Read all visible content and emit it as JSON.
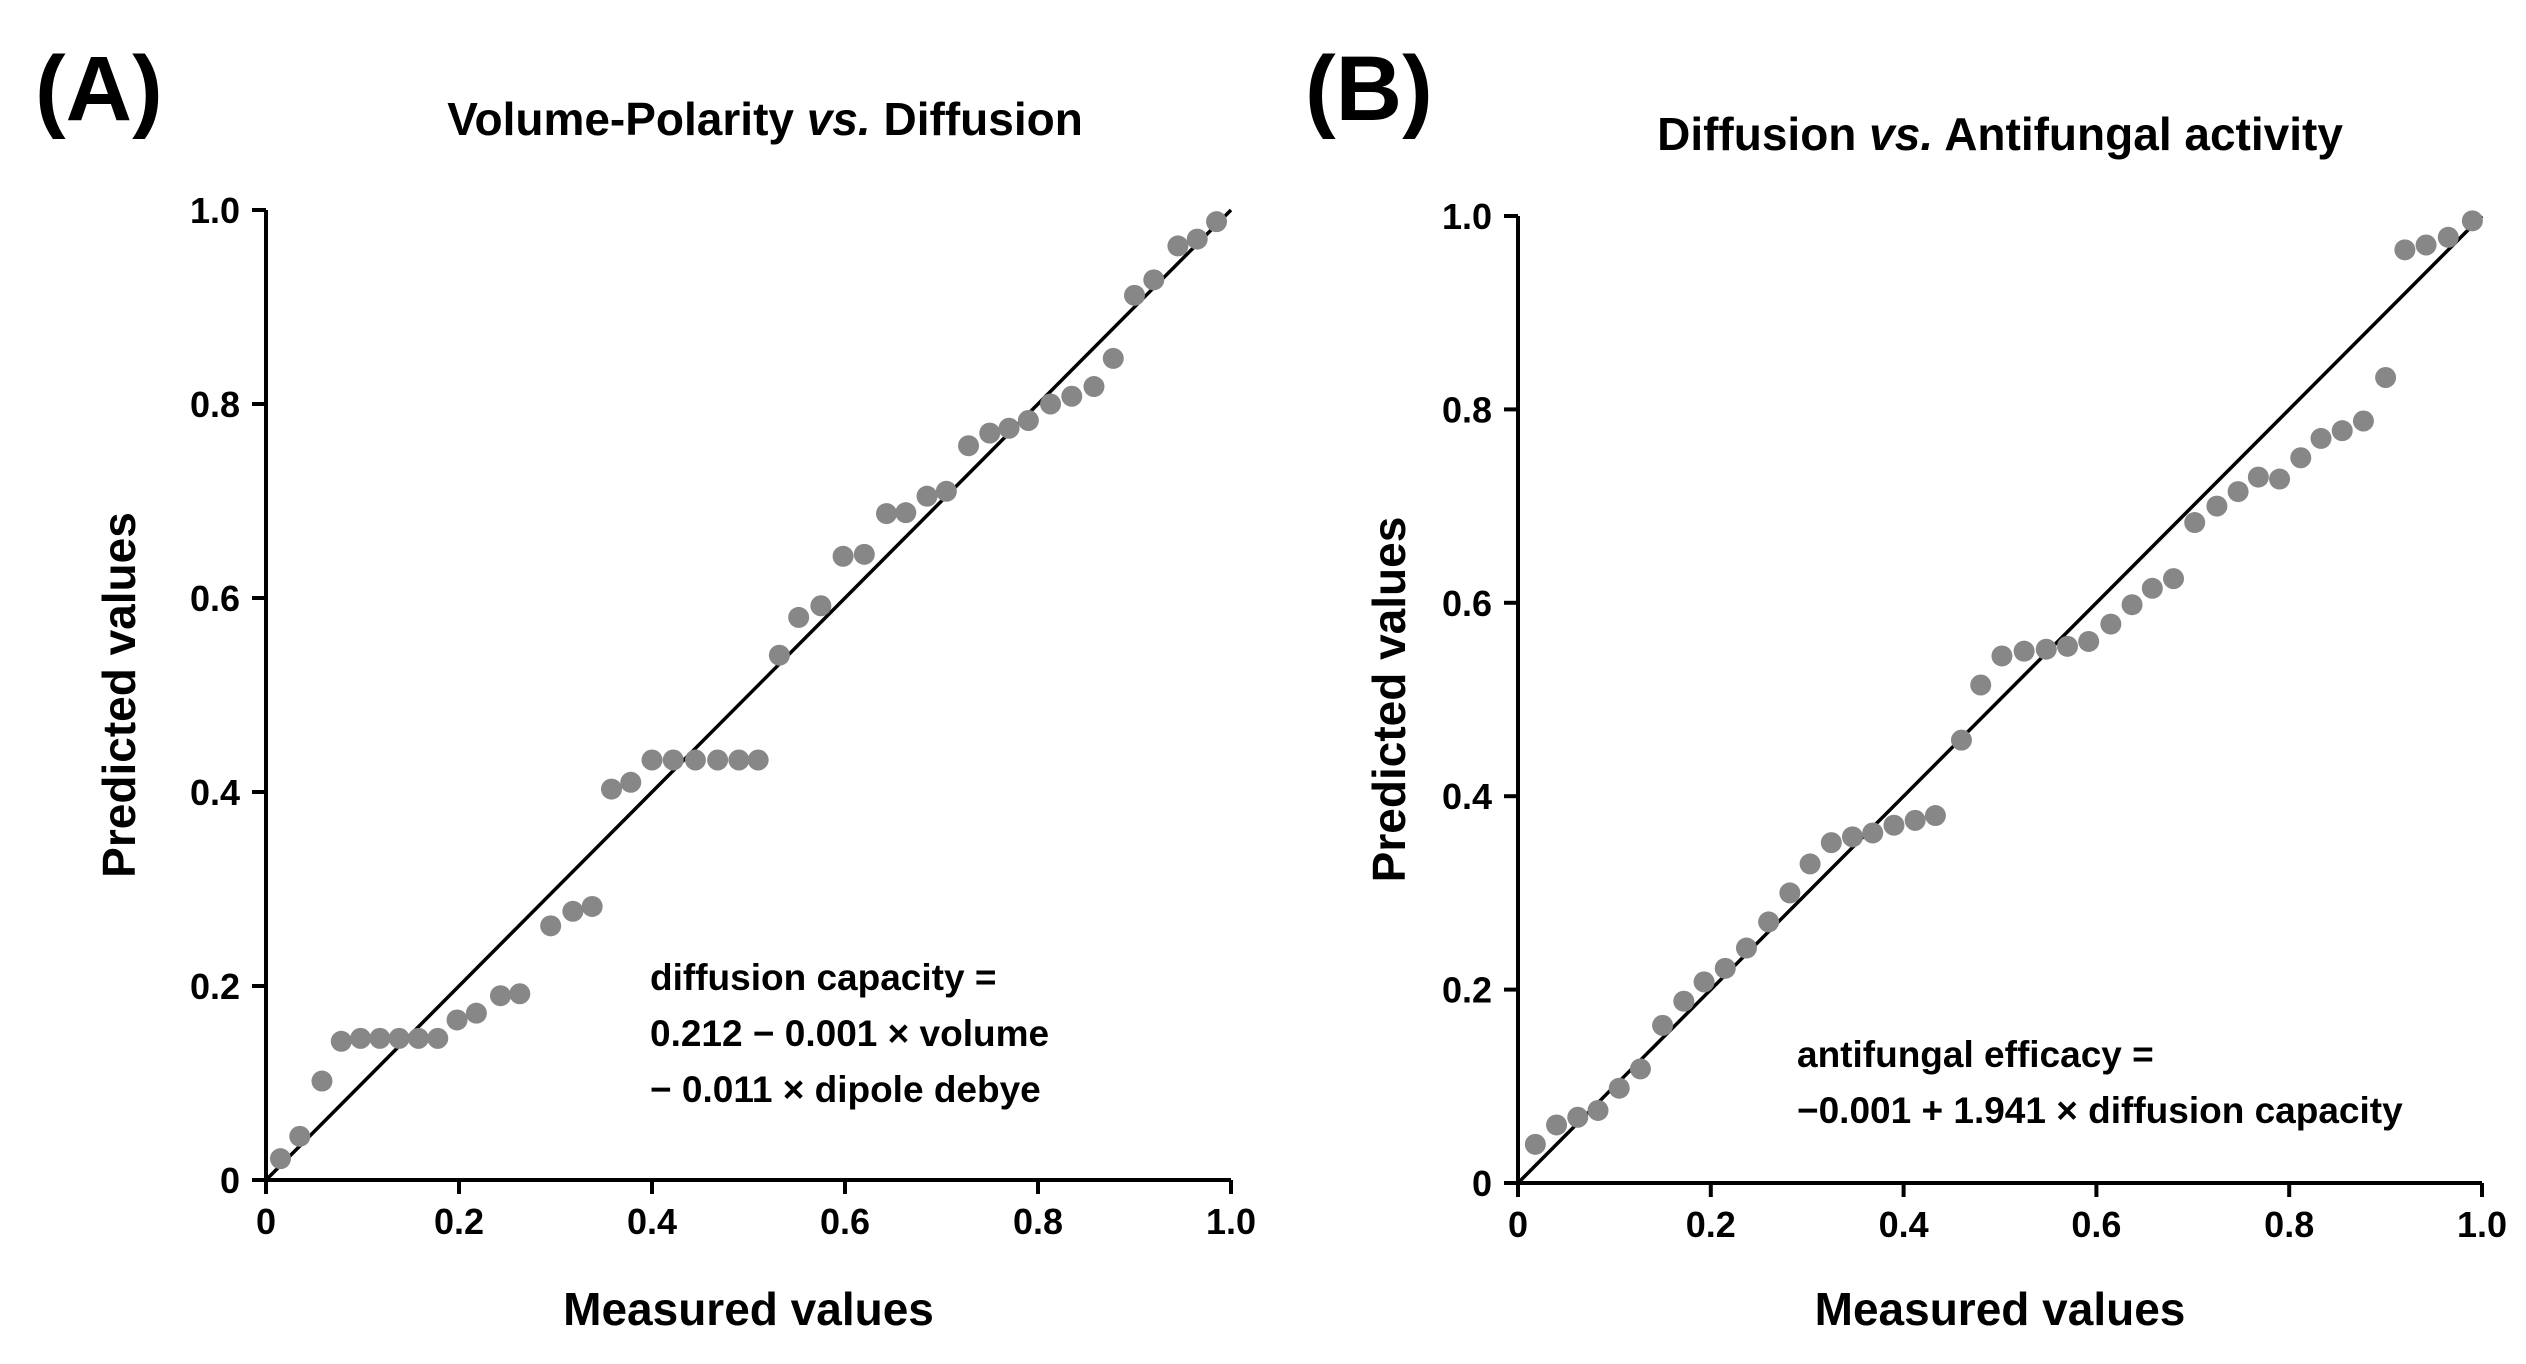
{
  "chart_data": [
    {
      "type": "scatter",
      "panel_label": "(A)",
      "title_parts": [
        "Volume-Polarity ",
        "vs.",
        " Diffusion"
      ],
      "xlabel": "Measured values",
      "ylabel": "Predicted values",
      "xlim": [
        0,
        1.0
      ],
      "ylim": [
        0,
        1.0
      ],
      "x_ticks": [
        "0",
        "0.2",
        "0.4",
        "0.6",
        "0.8",
        "1.0"
      ],
      "y_ticks": [
        "0",
        "0.2",
        "0.4",
        "0.6",
        "0.8",
        "1.0"
      ],
      "reference_line": {
        "from": [
          0,
          0
        ],
        "to": [
          1,
          1
        ]
      },
      "equation": [
        "diffusion capacity =",
        "0.212 − 0.001 × volume",
        "− 0.011 × dipole debye"
      ],
      "points": [
        [
          0.015,
          0.022
        ],
        [
          0.035,
          0.045
        ],
        [
          0.058,
          0.102
        ],
        [
          0.078,
          0.143
        ],
        [
          0.098,
          0.146
        ],
        [
          0.118,
          0.146
        ],
        [
          0.138,
          0.146
        ],
        [
          0.158,
          0.146
        ],
        [
          0.178,
          0.146
        ],
        [
          0.198,
          0.165
        ],
        [
          0.218,
          0.172
        ],
        [
          0.243,
          0.19
        ],
        [
          0.263,
          0.192
        ],
        [
          0.295,
          0.262
        ],
        [
          0.318,
          0.277
        ],
        [
          0.338,
          0.282
        ],
        [
          0.358,
          0.403
        ],
        [
          0.378,
          0.41
        ],
        [
          0.4,
          0.433
        ],
        [
          0.422,
          0.433
        ],
        [
          0.445,
          0.433
        ],
        [
          0.468,
          0.433
        ],
        [
          0.49,
          0.433
        ],
        [
          0.51,
          0.433
        ],
        [
          0.532,
          0.541
        ],
        [
          0.552,
          0.58
        ],
        [
          0.575,
          0.592
        ],
        [
          0.598,
          0.643
        ],
        [
          0.62,
          0.645
        ],
        [
          0.643,
          0.687
        ],
        [
          0.663,
          0.688
        ],
        [
          0.685,
          0.705
        ],
        [
          0.705,
          0.71
        ],
        [
          0.728,
          0.757
        ],
        [
          0.75,
          0.77
        ],
        [
          0.77,
          0.775
        ],
        [
          0.79,
          0.783
        ],
        [
          0.813,
          0.8
        ],
        [
          0.835,
          0.808
        ],
        [
          0.858,
          0.818
        ],
        [
          0.878,
          0.847
        ],
        [
          0.9,
          0.912
        ],
        [
          0.92,
          0.928
        ],
        [
          0.945,
          0.963
        ],
        [
          0.965,
          0.97
        ],
        [
          0.985,
          0.988
        ]
      ]
    },
    {
      "type": "scatter",
      "panel_label": "(B)",
      "title_parts": [
        "Diffusion ",
        "vs.",
        " Antifungal activity"
      ],
      "xlabel": "Measured values",
      "ylabel": "Predicted values",
      "xlim": [
        0,
        1.0
      ],
      "ylim": [
        0,
        1.0
      ],
      "x_ticks": [
        "0",
        "0.2",
        "0.4",
        "0.6",
        "0.8",
        "1.0"
      ],
      "y_ticks": [
        "0",
        "0.2",
        "0.4",
        "0.6",
        "0.8",
        "1.0"
      ],
      "reference_line": {
        "from": [
          0,
          0
        ],
        "to": [
          1,
          1
        ]
      },
      "equation": [
        "antifungal efficacy =",
        "−0.001 + 1.941 × diffusion capacity"
      ],
      "points": [
        [
          0.018,
          0.04
        ],
        [
          0.04,
          0.06
        ],
        [
          0.062,
          0.068
        ],
        [
          0.083,
          0.075
        ],
        [
          0.105,
          0.098
        ],
        [
          0.127,
          0.118
        ],
        [
          0.15,
          0.163
        ],
        [
          0.172,
          0.188
        ],
        [
          0.193,
          0.208
        ],
        [
          0.215,
          0.222
        ],
        [
          0.237,
          0.243
        ],
        [
          0.26,
          0.27
        ],
        [
          0.282,
          0.3
        ],
        [
          0.303,
          0.33
        ],
        [
          0.325,
          0.352
        ],
        [
          0.347,
          0.358
        ],
        [
          0.368,
          0.362
        ],
        [
          0.39,
          0.37
        ],
        [
          0.412,
          0.375
        ],
        [
          0.433,
          0.38
        ],
        [
          0.46,
          0.458
        ],
        [
          0.48,
          0.515
        ],
        [
          0.502,
          0.545
        ],
        [
          0.525,
          0.55
        ],
        [
          0.548,
          0.552
        ],
        [
          0.57,
          0.555
        ],
        [
          0.592,
          0.56
        ],
        [
          0.615,
          0.578
        ],
        [
          0.637,
          0.598
        ],
        [
          0.658,
          0.615
        ],
        [
          0.68,
          0.625
        ],
        [
          0.702,
          0.683
        ],
        [
          0.725,
          0.7
        ],
        [
          0.747,
          0.715
        ],
        [
          0.768,
          0.73
        ],
        [
          0.79,
          0.728
        ],
        [
          0.812,
          0.75
        ],
        [
          0.833,
          0.77
        ],
        [
          0.855,
          0.778
        ],
        [
          0.877,
          0.788
        ],
        [
          0.9,
          0.833
        ],
        [
          0.92,
          0.965
        ],
        [
          0.942,
          0.97
        ],
        [
          0.965,
          0.978
        ],
        [
          0.99,
          0.995
        ]
      ]
    }
  ]
}
